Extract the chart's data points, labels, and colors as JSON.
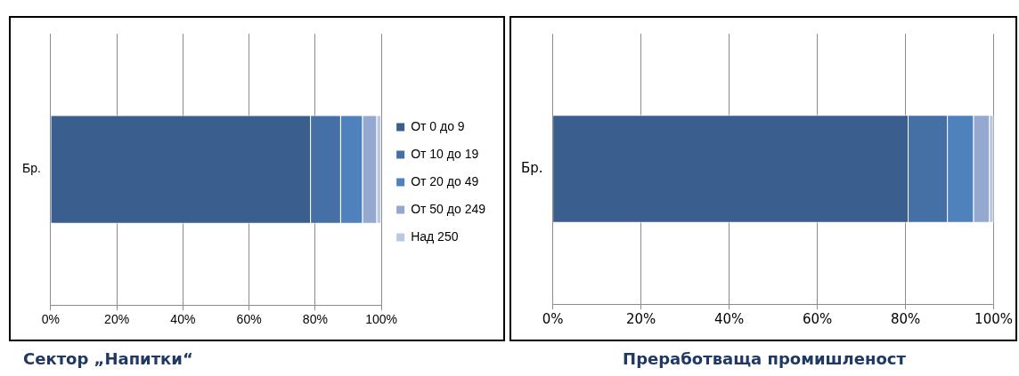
{
  "chart_data": [
    {
      "type": "bar",
      "orientation": "horizontal",
      "stacked": true,
      "title": "Сектор „Напитки“",
      "categories": [
        "Бр."
      ],
      "series": [
        {
          "name": "От 0 до 9",
          "color": "#3a5f8e",
          "values": [
            78.7
          ]
        },
        {
          "name": "От 10 до 19",
          "color": "#4470a6",
          "values": [
            9.1
          ]
        },
        {
          "name": "От 20 до 49",
          "color": "#4f81bd",
          "values": [
            6.6
          ]
        },
        {
          "name": "От 50 до 249",
          "color": "#95a8d0",
          "values": [
            4.3
          ]
        },
        {
          "name": "Над 250",
          "color": "#b9c9e2",
          "values": [
            1.3
          ]
        }
      ],
      "xlim": [
        0,
        100
      ],
      "xticks": [
        {
          "value": 0,
          "label": "0%"
        },
        {
          "value": 20,
          "label": "20%"
        },
        {
          "value": 40,
          "label": "40%"
        },
        {
          "value": 60,
          "label": "60%"
        },
        {
          "value": 80,
          "label": "80%"
        },
        {
          "value": 100,
          "label": "100%"
        }
      ],
      "grid": "x",
      "legend": "right"
    },
    {
      "type": "bar",
      "orientation": "horizontal",
      "stacked": true,
      "title": "Преработваща промишленост",
      "categories": [
        "Бр."
      ],
      "series": [
        {
          "color": "#3a5f8e",
          "values": [
            80.7
          ]
        },
        {
          "color": "#4470a6",
          "values": [
            8.9
          ]
        },
        {
          "color": "#4f81bd",
          "values": [
            5.9
          ]
        },
        {
          "color": "#95a8d0",
          "values": [
            3.6
          ]
        },
        {
          "color": "#b9c9e2",
          "values": [
            0.9
          ]
        }
      ],
      "xlim": [
        0,
        100
      ],
      "xticks": [
        {
          "value": 0,
          "label": "0%"
        },
        {
          "value": 20,
          "label": "20%"
        },
        {
          "value": 40,
          "label": "40%"
        },
        {
          "value": 60,
          "label": "60%"
        },
        {
          "value": 80,
          "label": "80%"
        },
        {
          "value": 100,
          "label": "100%"
        }
      ],
      "grid": "x",
      "legend": false
    }
  ]
}
